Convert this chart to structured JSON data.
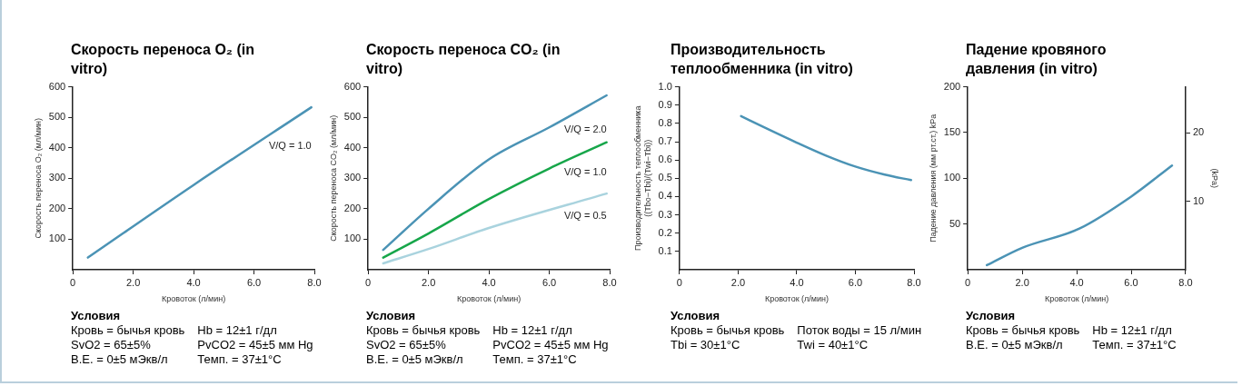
{
  "chart_data": [
    {
      "type": "line",
      "title": "Скорость переноса O₂ (in vitro)",
      "xlabel": "Кровоток (л/мин)",
      "ylabel": "Скорость переноса O₂ (мл/мин)",
      "xlim": [
        0,
        8
      ],
      "xticks": [
        {
          "value": 0,
          "label": "0"
        },
        {
          "value": 2,
          "label": "2.0"
        },
        {
          "value": 4,
          "label": "4.0"
        },
        {
          "value": 6,
          "label": "6.0"
        },
        {
          "value": 8,
          "label": "8.0"
        }
      ],
      "ylim": [
        0,
        600
      ],
      "yticks": [
        100,
        200,
        300,
        400,
        500,
        600
      ],
      "series": [
        {
          "name": "V/Q = 1.0",
          "color": "#4b93b5",
          "x": [
            0.5,
            4,
            7.9
          ],
          "values": [
            40,
            278,
            533
          ]
        }
      ],
      "annotations": [
        "Условия",
        "Кровь = бычья кровь",
        "Hb = 12±1 г/дл",
        "SvO2 = 65±5%",
        "PvCO2 = 45±5 мм Hg",
        "B.E. = 0±5 мЭкв/л",
        "Темп. = 37±1°C"
      ]
    },
    {
      "type": "line",
      "title": "Скорость переноса CO₂ (in vitro)",
      "xlabel": "Кровоток (л/мин)",
      "ylabel": "Скорость переноса CO₂ (мл/мин)",
      "xlim": [
        0,
        8
      ],
      "xticks": [
        {
          "value": 0,
          "label": "0"
        },
        {
          "value": 2,
          "label": "2.0"
        },
        {
          "value": 4,
          "label": "4.0"
        },
        {
          "value": 6,
          "label": "6.0"
        },
        {
          "value": 8,
          "label": "8.0"
        }
      ],
      "ylim": [
        0,
        600
      ],
      "yticks": [
        100,
        200,
        300,
        400,
        500,
        600
      ],
      "series": [
        {
          "name": "V/Q = 2.0",
          "color": "#4b93b5",
          "x": [
            0.5,
            2,
            4,
            6,
            7.9
          ],
          "values": [
            65,
            200,
            362,
            467,
            572
          ]
        },
        {
          "name": "V/Q = 1.0",
          "color": "#17a64a",
          "x": [
            0.5,
            2,
            4,
            6,
            7.9
          ],
          "values": [
            40,
            119,
            232,
            332,
            418
          ]
        },
        {
          "name": "V/Q = 0.5",
          "color": "#a9d3de",
          "x": [
            0.5,
            2,
            4,
            7.9
          ],
          "values": [
            21,
            68,
            137,
            250
          ]
        }
      ],
      "annotations": [
        "Условия",
        "Кровь = бычья кровь",
        "Hb = 12±1 г/дл",
        "SvO2 = 65±5%",
        "PvCO2 = 45±5 мм Hg",
        "B.E. = 0±5 мЭкв/л",
        "Темп. = 37±1°C"
      ]
    },
    {
      "type": "line",
      "title": "Производительность теплообменника (in vitro)",
      "xlabel": "Кровоток (л/мин)",
      "ylabel": "Производительность теплообменника ((Tbo−Tbi)/(Twi−Tbi))",
      "xlim": [
        0,
        8
      ],
      "xticks": [
        {
          "value": 0,
          "label": "0"
        },
        {
          "value": 2,
          "label": "2.0"
        },
        {
          "value": 4,
          "label": "4.0"
        },
        {
          "value": 6,
          "label": "6.0"
        },
        {
          "value": 8,
          "label": "8.0"
        }
      ],
      "ylim": [
        0,
        1
      ],
      "yticks": [
        0.1,
        0.2,
        0.3,
        0.4,
        0.5,
        0.6,
        0.7,
        0.8,
        0.9,
        {
          "value": 1,
          "label": "1.0"
        }
      ],
      "series": [
        {
          "color": "#4b93b5",
          "x": [
            2.1,
            3,
            4,
            5,
            6,
            7,
            7.9
          ],
          "values": [
            0.84,
            0.77,
            0.695,
            0.624,
            0.564,
            0.52,
            0.49
          ]
        }
      ],
      "annotations": [
        "Условия",
        "Кровь = бычья кровь",
        "Поток воды = 15 л/мин",
        "Tbi = 30±1°C",
        "Twi = 40±1°C"
      ]
    },
    {
      "type": "line",
      "title": "Падение кровяного давления (in vitro)",
      "xlabel": "Кровоток (л/мин)",
      "ylabel": "Падение давления (мм рт.ст.) kPa",
      "y2label": "(kPa)",
      "xlim": [
        0,
        8
      ],
      "xticks": [
        {
          "value": 0,
          "label": "0"
        },
        {
          "value": 2,
          "label": "2.0"
        },
        {
          "value": 4,
          "label": "4.0"
        },
        {
          "value": 6,
          "label": "6.0"
        },
        {
          "value": 8,
          "label": "8.0"
        }
      ],
      "ylim": [
        0,
        200
      ],
      "yticks": [
        50,
        100,
        150,
        200
      ],
      "y2lim": [
        0,
        26.7
      ],
      "y2ticks": [
        10,
        20
      ],
      "series": [
        {
          "color": "#4b93b5",
          "x": [
            0.7,
            2,
            4.1,
            6,
            7.5
          ],
          "values": [
            5,
            24,
            45,
            80,
            114
          ]
        }
      ],
      "annotations": [
        "Условия",
        "Кровь = бычья кровь",
        "Hb = 12±1 г/дл",
        "B.E. = 0±5 мЭкв/л",
        "Темп. = 37±1°C"
      ]
    }
  ]
}
